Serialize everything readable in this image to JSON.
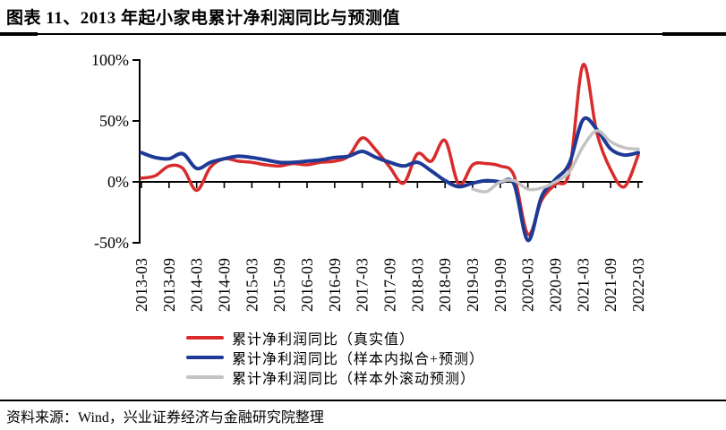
{
  "page": {
    "background": "#ffffff"
  },
  "header": {
    "title": "图表 11、2013 年起小家电累计净利润同比与预测值"
  },
  "footer": {
    "source": "资料来源：Wind，兴业证券经济与金融研究院整理"
  },
  "chart_data": {
    "type": "line",
    "title": "图表 11、2013 年起小家电累计净利润同比与预测值",
    "grid": false,
    "legend_position": "bottom",
    "ylim": [
      -50,
      100
    ],
    "y_axis": {
      "ticks": [
        {
          "v": 100,
          "label": "100%"
        },
        {
          "v": 50,
          "label": "50%"
        },
        {
          "v": 0,
          "label": "0%"
        },
        {
          "v": -50,
          "label": "-50%"
        }
      ]
    },
    "label_every": 2,
    "categories": [
      "2013-03",
      "2013-06",
      "2013-09",
      "2013-12",
      "2014-03",
      "2014-06",
      "2014-09",
      "2014-12",
      "2015-03",
      "2015-06",
      "2015-09",
      "2015-12",
      "2016-03",
      "2016-06",
      "2016-09",
      "2016-12",
      "2017-03",
      "2017-06",
      "2017-09",
      "2017-12",
      "2018-03",
      "2018-06",
      "2018-09",
      "2018-12",
      "2019-03",
      "2019-06",
      "2019-09",
      "2019-12",
      "2020-03",
      "2020-06",
      "2020-09",
      "2020-12",
      "2021-03",
      "2021-06",
      "2021-09",
      "2021-12",
      "2022-03"
    ],
    "series": [
      {
        "name": "累计净利润同比（真实值）",
        "color": "#d92b2b",
        "values": [
          3,
          5,
          13,
          11,
          -7,
          12,
          19,
          17,
          16,
          14,
          13,
          15,
          14,
          16,
          17,
          21,
          36,
          26,
          12,
          -1,
          23,
          17,
          34,
          -2,
          14,
          15,
          13,
          5,
          -43,
          -15,
          -2,
          8,
          96,
          40,
          10,
          -4,
          22
        ]
      },
      {
        "name": "累计净利润同比（样本内拟合+预测）",
        "color": "#1e3a96",
        "values": [
          24,
          20,
          19,
          23,
          11,
          16,
          19,
          21,
          20,
          18,
          16,
          16,
          17,
          18,
          20,
          21,
          25,
          20,
          16,
          13,
          16,
          9,
          1,
          -4,
          -1,
          1,
          0,
          -2,
          -48,
          -12,
          2,
          15,
          51,
          43,
          27,
          22,
          24
        ]
      },
      {
        "name": "累计净利润同比（样本外滚动预测）",
        "color": "#c3c3c3",
        "values": [
          null,
          null,
          null,
          null,
          null,
          null,
          null,
          null,
          null,
          null,
          null,
          null,
          null,
          null,
          null,
          null,
          null,
          null,
          null,
          null,
          null,
          null,
          null,
          null,
          -6,
          -8,
          0,
          1,
          -6,
          -5,
          0,
          8,
          29,
          42,
          33,
          28,
          27
        ]
      }
    ]
  }
}
